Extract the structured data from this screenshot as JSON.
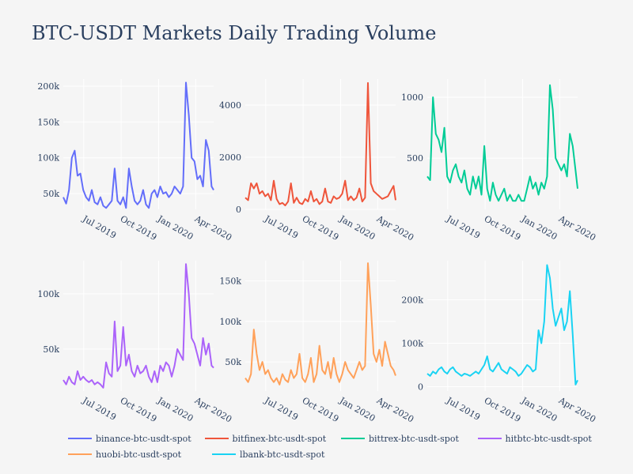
{
  "title": "BTC-USDT Markets Daily Trading Volume",
  "legend_labels": [
    "binance-btc-usdt-spot",
    "bitfinex-btc-usdt-spot",
    "bittrex-btc-usdt-spot",
    "hitbtc-btc-usdt-spot",
    "huobi-btc-usdt-spot",
    "lbank-btc-usdt-spot"
  ],
  "chart_data": {
    "type": "line",
    "title": "BTC-USDT Markets Daily Trading Volume",
    "legend_placement": "bottom",
    "grid": true,
    "x_ticks": [
      "Jul 2019",
      "Oct 2019",
      "Jan 2020",
      "Apr 2020"
    ],
    "x_tick_dates": [
      "2019-07-01",
      "2019-10-01",
      "2020-01-01",
      "2020-04-01"
    ],
    "xlim": [
      "2019-05-12",
      "2020-05-15"
    ],
    "x": [
      "2019-05-12",
      "2019-05-19",
      "2019-05-26",
      "2019-06-02",
      "2019-06-09",
      "2019-06-16",
      "2019-06-23",
      "2019-06-30",
      "2019-07-07",
      "2019-07-14",
      "2019-07-21",
      "2019-07-28",
      "2019-08-04",
      "2019-08-11",
      "2019-08-18",
      "2019-08-25",
      "2019-09-01",
      "2019-09-08",
      "2019-09-15",
      "2019-09-22",
      "2019-09-29",
      "2019-10-06",
      "2019-10-13",
      "2019-10-20",
      "2019-10-27",
      "2019-11-03",
      "2019-11-10",
      "2019-11-17",
      "2019-11-24",
      "2019-12-01",
      "2019-12-08",
      "2019-12-15",
      "2019-12-22",
      "2019-12-29",
      "2020-01-05",
      "2020-01-12",
      "2020-01-19",
      "2020-01-26",
      "2020-02-02",
      "2020-02-09",
      "2020-02-16",
      "2020-02-23",
      "2020-03-01",
      "2020-03-08",
      "2020-03-15",
      "2020-03-22",
      "2020-03-29",
      "2020-04-05",
      "2020-04-12",
      "2020-04-19",
      "2020-04-26",
      "2020-05-03",
      "2020-05-10",
      "2020-05-15"
    ],
    "series": [
      {
        "name": "binance-btc-usdt-spot",
        "color": "#636efa",
        "ylim": [
          28000,
          210000
        ],
        "yticks": [
          50000,
          100000,
          150000,
          200000
        ],
        "ytick_labels": [
          "50k",
          "100k",
          "150k",
          "200k"
        ],
        "values": [
          45000,
          36000,
          55000,
          100000,
          110000,
          75000,
          78000,
          55000,
          45000,
          40000,
          55000,
          38000,
          35000,
          45000,
          33000,
          30000,
          35000,
          40000,
          85000,
          40000,
          35000,
          45000,
          30000,
          85000,
          60000,
          40000,
          35000,
          40000,
          55000,
          35000,
          30000,
          50000,
          55000,
          45000,
          60000,
          50000,
          52000,
          45000,
          50000,
          60000,
          55000,
          50000,
          60000,
          205000,
          160000,
          100000,
          95000,
          70000,
          75000,
          60000,
          125000,
          110000,
          60000,
          55000
        ]
      },
      {
        "name": "bitfinex-btc-usdt-spot",
        "color": "#ef553b",
        "ylim": [
          0,
          5000
        ],
        "yticks": [
          0,
          2000,
          4000
        ],
        "ytick_labels": [
          "0",
          "2000",
          "4000"
        ],
        "values": [
          450,
          350,
          1000,
          800,
          1000,
          600,
          700,
          500,
          600,
          350,
          1100,
          400,
          200,
          250,
          150,
          300,
          1000,
          250,
          450,
          250,
          200,
          400,
          300,
          700,
          300,
          400,
          200,
          300,
          800,
          300,
          250,
          500,
          400,
          450,
          600,
          1100,
          350,
          500,
          350,
          450,
          800,
          300,
          450,
          4850,
          1000,
          700,
          600,
          500,
          400,
          450,
          500,
          700,
          900,
          350
        ]
      },
      {
        "name": "bittrex-btc-usdt-spot",
        "color": "#00cc96",
        "ylim": [
          80,
          1150
        ],
        "yticks": [
          500,
          1000
        ],
        "ytick_labels": [
          "500",
          "1000"
        ],
        "values": [
          350,
          320,
          1000,
          700,
          650,
          550,
          750,
          350,
          300,
          400,
          450,
          350,
          300,
          400,
          250,
          200,
          350,
          250,
          350,
          200,
          600,
          250,
          150,
          300,
          200,
          150,
          200,
          250,
          150,
          200,
          150,
          150,
          200,
          150,
          150,
          250,
          350,
          250,
          300,
          200,
          300,
          250,
          350,
          1100,
          900,
          500,
          450,
          400,
          450,
          350,
          700,
          600,
          400,
          250
        ]
      },
      {
        "name": "hitbtc-btc-usdt-spot",
        "color": "#ab63fa",
        "ylim": [
          12000,
          130000
        ],
        "yticks": [
          50000,
          100000
        ],
        "ytick_labels": [
          "50k",
          "100k"
        ],
        "values": [
          22000,
          18000,
          25000,
          20000,
          18000,
          30000,
          22000,
          25000,
          22000,
          20000,
          22000,
          18000,
          20000,
          18000,
          15000,
          38000,
          28000,
          25000,
          75000,
          30000,
          35000,
          70000,
          35000,
          45000,
          30000,
          25000,
          35000,
          28000,
          30000,
          35000,
          25000,
          20000,
          30000,
          20000,
          35000,
          30000,
          38000,
          35000,
          25000,
          35000,
          50000,
          45000,
          40000,
          127000,
          100000,
          60000,
          55000,
          45000,
          35000,
          60000,
          45000,
          55000,
          35000,
          33000
        ]
      },
      {
        "name": "huobi-btc-usdt-spot",
        "color": "#ffa15a",
        "ylim": [
          14000,
          175000
        ],
        "yticks": [
          50000,
          100000,
          150000
        ],
        "ytick_labels": [
          "50k",
          "100k",
          "150k"
        ],
        "values": [
          30000,
          25000,
          35000,
          90000,
          60000,
          40000,
          50000,
          35000,
          40000,
          30000,
          25000,
          30000,
          22000,
          35000,
          28000,
          25000,
          40000,
          30000,
          35000,
          60000,
          30000,
          25000,
          35000,
          55000,
          25000,
          35000,
          70000,
          40000,
          35000,
          50000,
          30000,
          55000,
          35000,
          25000,
          35000,
          50000,
          40000,
          35000,
          30000,
          40000,
          50000,
          40000,
          45000,
          172000,
          120000,
          60000,
          50000,
          65000,
          45000,
          75000,
          60000,
          45000,
          40000,
          33000
        ]
      },
      {
        "name": "lbank-btc-usdt-spot",
        "color": "#19d3f3",
        "ylim": [
          -10000,
          290000
        ],
        "yticks": [
          0,
          100000,
          200000
        ],
        "ytick_labels": [
          "0",
          "100k",
          "200k"
        ],
        "values": [
          30000,
          25000,
          35000,
          30000,
          40000,
          45000,
          35000,
          30000,
          40000,
          45000,
          35000,
          30000,
          25000,
          30000,
          28000,
          25000,
          30000,
          35000,
          30000,
          40000,
          50000,
          70000,
          40000,
          35000,
          45000,
          55000,
          40000,
          35000,
          30000,
          45000,
          40000,
          35000,
          25000,
          30000,
          40000,
          50000,
          45000,
          35000,
          40000,
          130000,
          100000,
          150000,
          280000,
          250000,
          180000,
          140000,
          160000,
          180000,
          130000,
          150000,
          220000,
          120000,
          5000,
          15000
        ]
      }
    ]
  }
}
